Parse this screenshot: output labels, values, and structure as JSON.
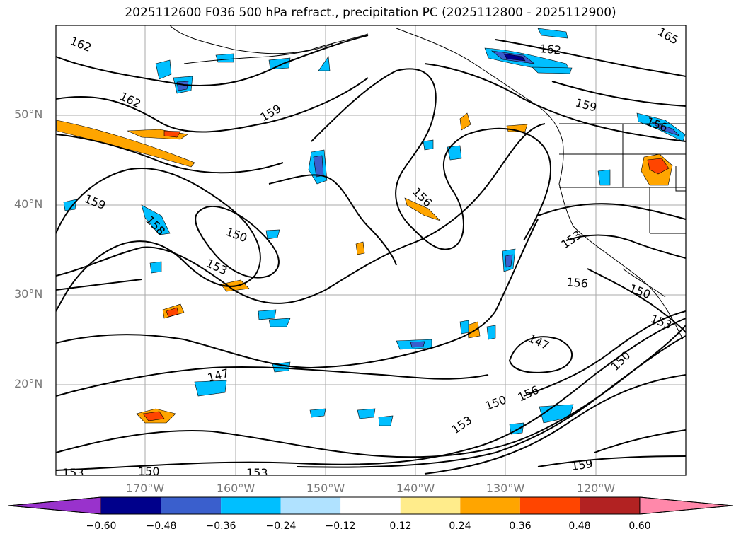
{
  "title": "2025112600 F036 500 hPa refract., precipitation PC (2025112800 - 2025112900)",
  "lat_labels": [
    "50°N",
    "40°N",
    "30°N",
    "20°N"
  ],
  "lon_labels": [
    "170°W",
    "160°W",
    "150°W",
    "140°W",
    "130°W",
    "120°W"
  ],
  "contour_labels": [
    "162",
    "162",
    "162",
    "165",
    "159",
    "159",
    "159",
    "159",
    "156",
    "156",
    "156",
    "156",
    "150",
    "150",
    "150",
    "150",
    "150",
    "153",
    "153",
    "153",
    "153",
    "153",
    "153",
    "147",
    "147",
    "158"
  ],
  "colorbar": {
    "ticks": [
      "−0.60",
      "−0.48",
      "−0.36",
      "−0.24",
      "−0.12",
      "0.12",
      "0.24",
      "0.36",
      "0.48",
      "0.60"
    ],
    "colors": [
      "#9932cc",
      "#00008b",
      "#3a5fcd",
      "#00bfff",
      "#b0e2ff",
      "#ffffff",
      "#ffec8b",
      "#ffa500",
      "#ff4500",
      "#b22222",
      "#ff88aa"
    ]
  }
}
